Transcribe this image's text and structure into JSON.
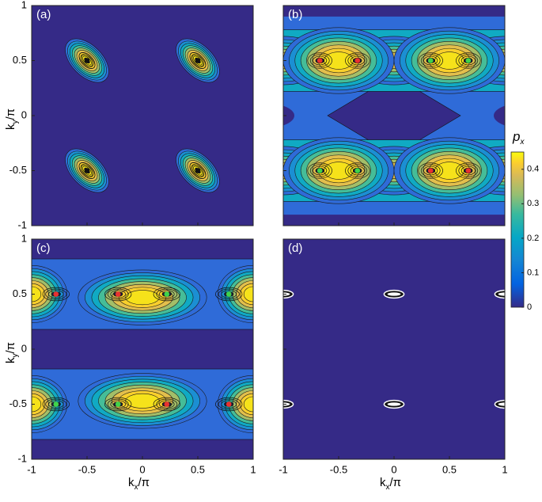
{
  "chart_data": [
    {
      "type": "scatter",
      "panel_label": "(a)",
      "xlim": [
        -1,
        1
      ],
      "ylim": [
        -1,
        1
      ],
      "xticks": [
        -1,
        -0.5,
        0,
        0.5,
        1
      ],
      "yticks": [
        -1,
        -0.5,
        0,
        0.5,
        1
      ],
      "xticklabels": false,
      "yticklabels": true,
      "ylabel": {
        "base": "k",
        "sub": "y",
        "rest": "/π"
      },
      "series": [
        {
          "color": "#111111",
          "x": [
            -0.5,
            0.5,
            -0.5,
            0.5
          ],
          "y": [
            0.5,
            0.5,
            -0.5,
            -0.5
          ]
        }
      ]
    },
    {
      "type": "scatter",
      "panel_label": "(b)",
      "xlim": [
        -1,
        1
      ],
      "ylim": [
        -1,
        1
      ],
      "xticks": [
        -1,
        -0.5,
        0,
        0.5,
        1
      ],
      "yticks": [
        -1,
        -0.5,
        0,
        0.5,
        1
      ],
      "xticklabels": false,
      "yticklabels": false,
      "series": [
        {
          "color": "#e8312f",
          "x": [
            -0.67,
            -0.33,
            0.33,
            0.67
          ],
          "y": [
            0.5,
            0.5,
            -0.5,
            -0.5
          ]
        },
        {
          "color": "#3fd34a",
          "x": [
            0.33,
            0.67,
            -0.67,
            -0.33
          ],
          "y": [
            0.5,
            0.5,
            -0.5,
            -0.5
          ]
        }
      ]
    },
    {
      "type": "scatter",
      "panel_label": "(c)",
      "xlim": [
        -1,
        1
      ],
      "ylim": [
        -1,
        1
      ],
      "xticks": [
        -1,
        -0.5,
        0,
        0.5,
        1
      ],
      "yticks": [
        -1,
        -0.5,
        0,
        0.5,
        1
      ],
      "xticklabels": true,
      "yticklabels": true,
      "xlabel": {
        "base": "k",
        "sub": "x",
        "rest": "/π"
      },
      "ylabel": {
        "base": "k",
        "sub": "y",
        "rest": "/π"
      },
      "series": [
        {
          "color": "#e8312f",
          "x": [
            -0.78,
            -0.22,
            0.22,
            0.78
          ],
          "y": [
            0.5,
            0.5,
            -0.5,
            -0.5
          ]
        },
        {
          "color": "#3fd34a",
          "x": [
            0.22,
            0.78,
            -0.78,
            -0.22
          ],
          "y": [
            0.5,
            0.5,
            -0.5,
            -0.5
          ]
        }
      ]
    },
    {
      "type": "contour",
      "panel_label": "(d)",
      "xlim": [
        -1,
        1
      ],
      "ylim": [
        -1,
        1
      ],
      "xticks": [
        -1,
        -0.5,
        0,
        0.5,
        1
      ],
      "yticks": [
        -1,
        -0.5,
        0,
        0.5,
        1
      ],
      "xticklabels": true,
      "yticklabels": false,
      "xlabel": {
        "base": "k",
        "sub": "x",
        "rest": "/π"
      }
    }
  ],
  "colorbar": {
    "label": {
      "base": "p",
      "sub": "x"
    },
    "lim": [
      0,
      0.45
    ],
    "ticks": [
      0,
      0.1,
      0.2,
      0.3,
      0.4
    ]
  }
}
